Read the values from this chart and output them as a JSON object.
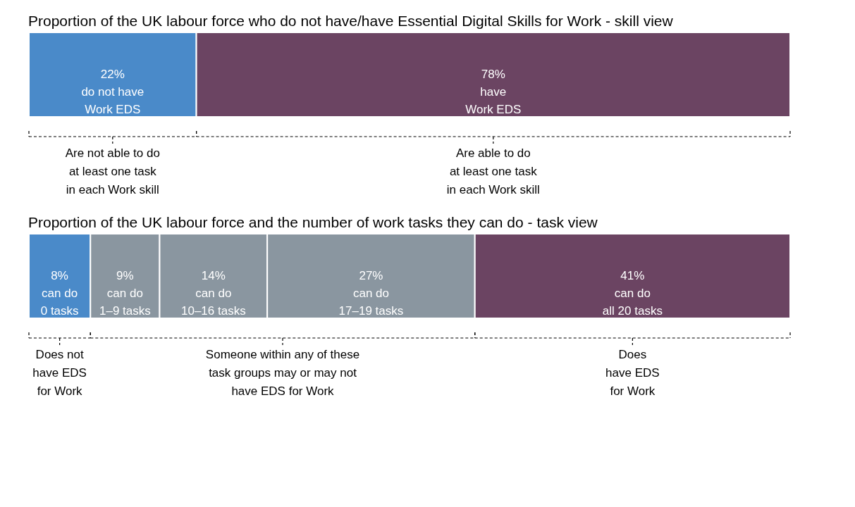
{
  "chart_data": [
    {
      "type": "bar",
      "orientation": "horizontal",
      "stacked": true,
      "title": "Proportion of the UK labour force who do not have/have Essential Digital Skills for Work - skill view",
      "xlim": [
        0,
        100
      ],
      "tick_labels": false,
      "grid": false,
      "categories": [
        null
      ],
      "series": [
        {
          "color": "#4a8ac9",
          "values": [
            22
          ],
          "value_labels": [
            "22%\ndo not have\nWork EDS"
          ]
        },
        {
          "color": "#6b4462",
          "values": [
            78
          ],
          "value_labels": [
            "78%\nhave\nWork EDS"
          ]
        }
      ],
      "annotations": [
        "Are not able to do\nat least one task\nin each Work skill",
        "Are able to do\nat least one task\nin each Work skill"
      ]
    },
    {
      "type": "bar",
      "orientation": "horizontal",
      "stacked": true,
      "title": "Proportion of the UK labour force and the number of work tasks they can do - task view",
      "xlim": [
        0,
        99
      ],
      "tick_labels": false,
      "grid": false,
      "categories": [
        null
      ],
      "series": [
        {
          "color": "#4a8ac9",
          "values": [
            8
          ],
          "value_labels": [
            "8%\ncan do\n0 tasks"
          ]
        },
        {
          "color": "#8a96a0",
          "values": [
            9
          ],
          "value_labels": [
            "9%\ncan do\n1–9 tasks"
          ]
        },
        {
          "color": "#8a96a0",
          "values": [
            14
          ],
          "value_labels": [
            "14%\ncan do\n10–16 tasks"
          ]
        },
        {
          "color": "#8a96a0",
          "values": [
            27
          ],
          "value_labels": [
            "27%\ncan do\n17–19 tasks"
          ]
        },
        {
          "color": "#6b4462",
          "values": [
            41
          ],
          "value_labels": [
            "41%\ncan do\nall 20 tasks"
          ]
        }
      ],
      "annotations": [
        "Does not\nhave EDS\nfor Work",
        "Someone within any of these\ntask groups may or may not\nhave EDS for Work",
        "Does\nhave EDS\nfor Work"
      ]
    }
  ]
}
